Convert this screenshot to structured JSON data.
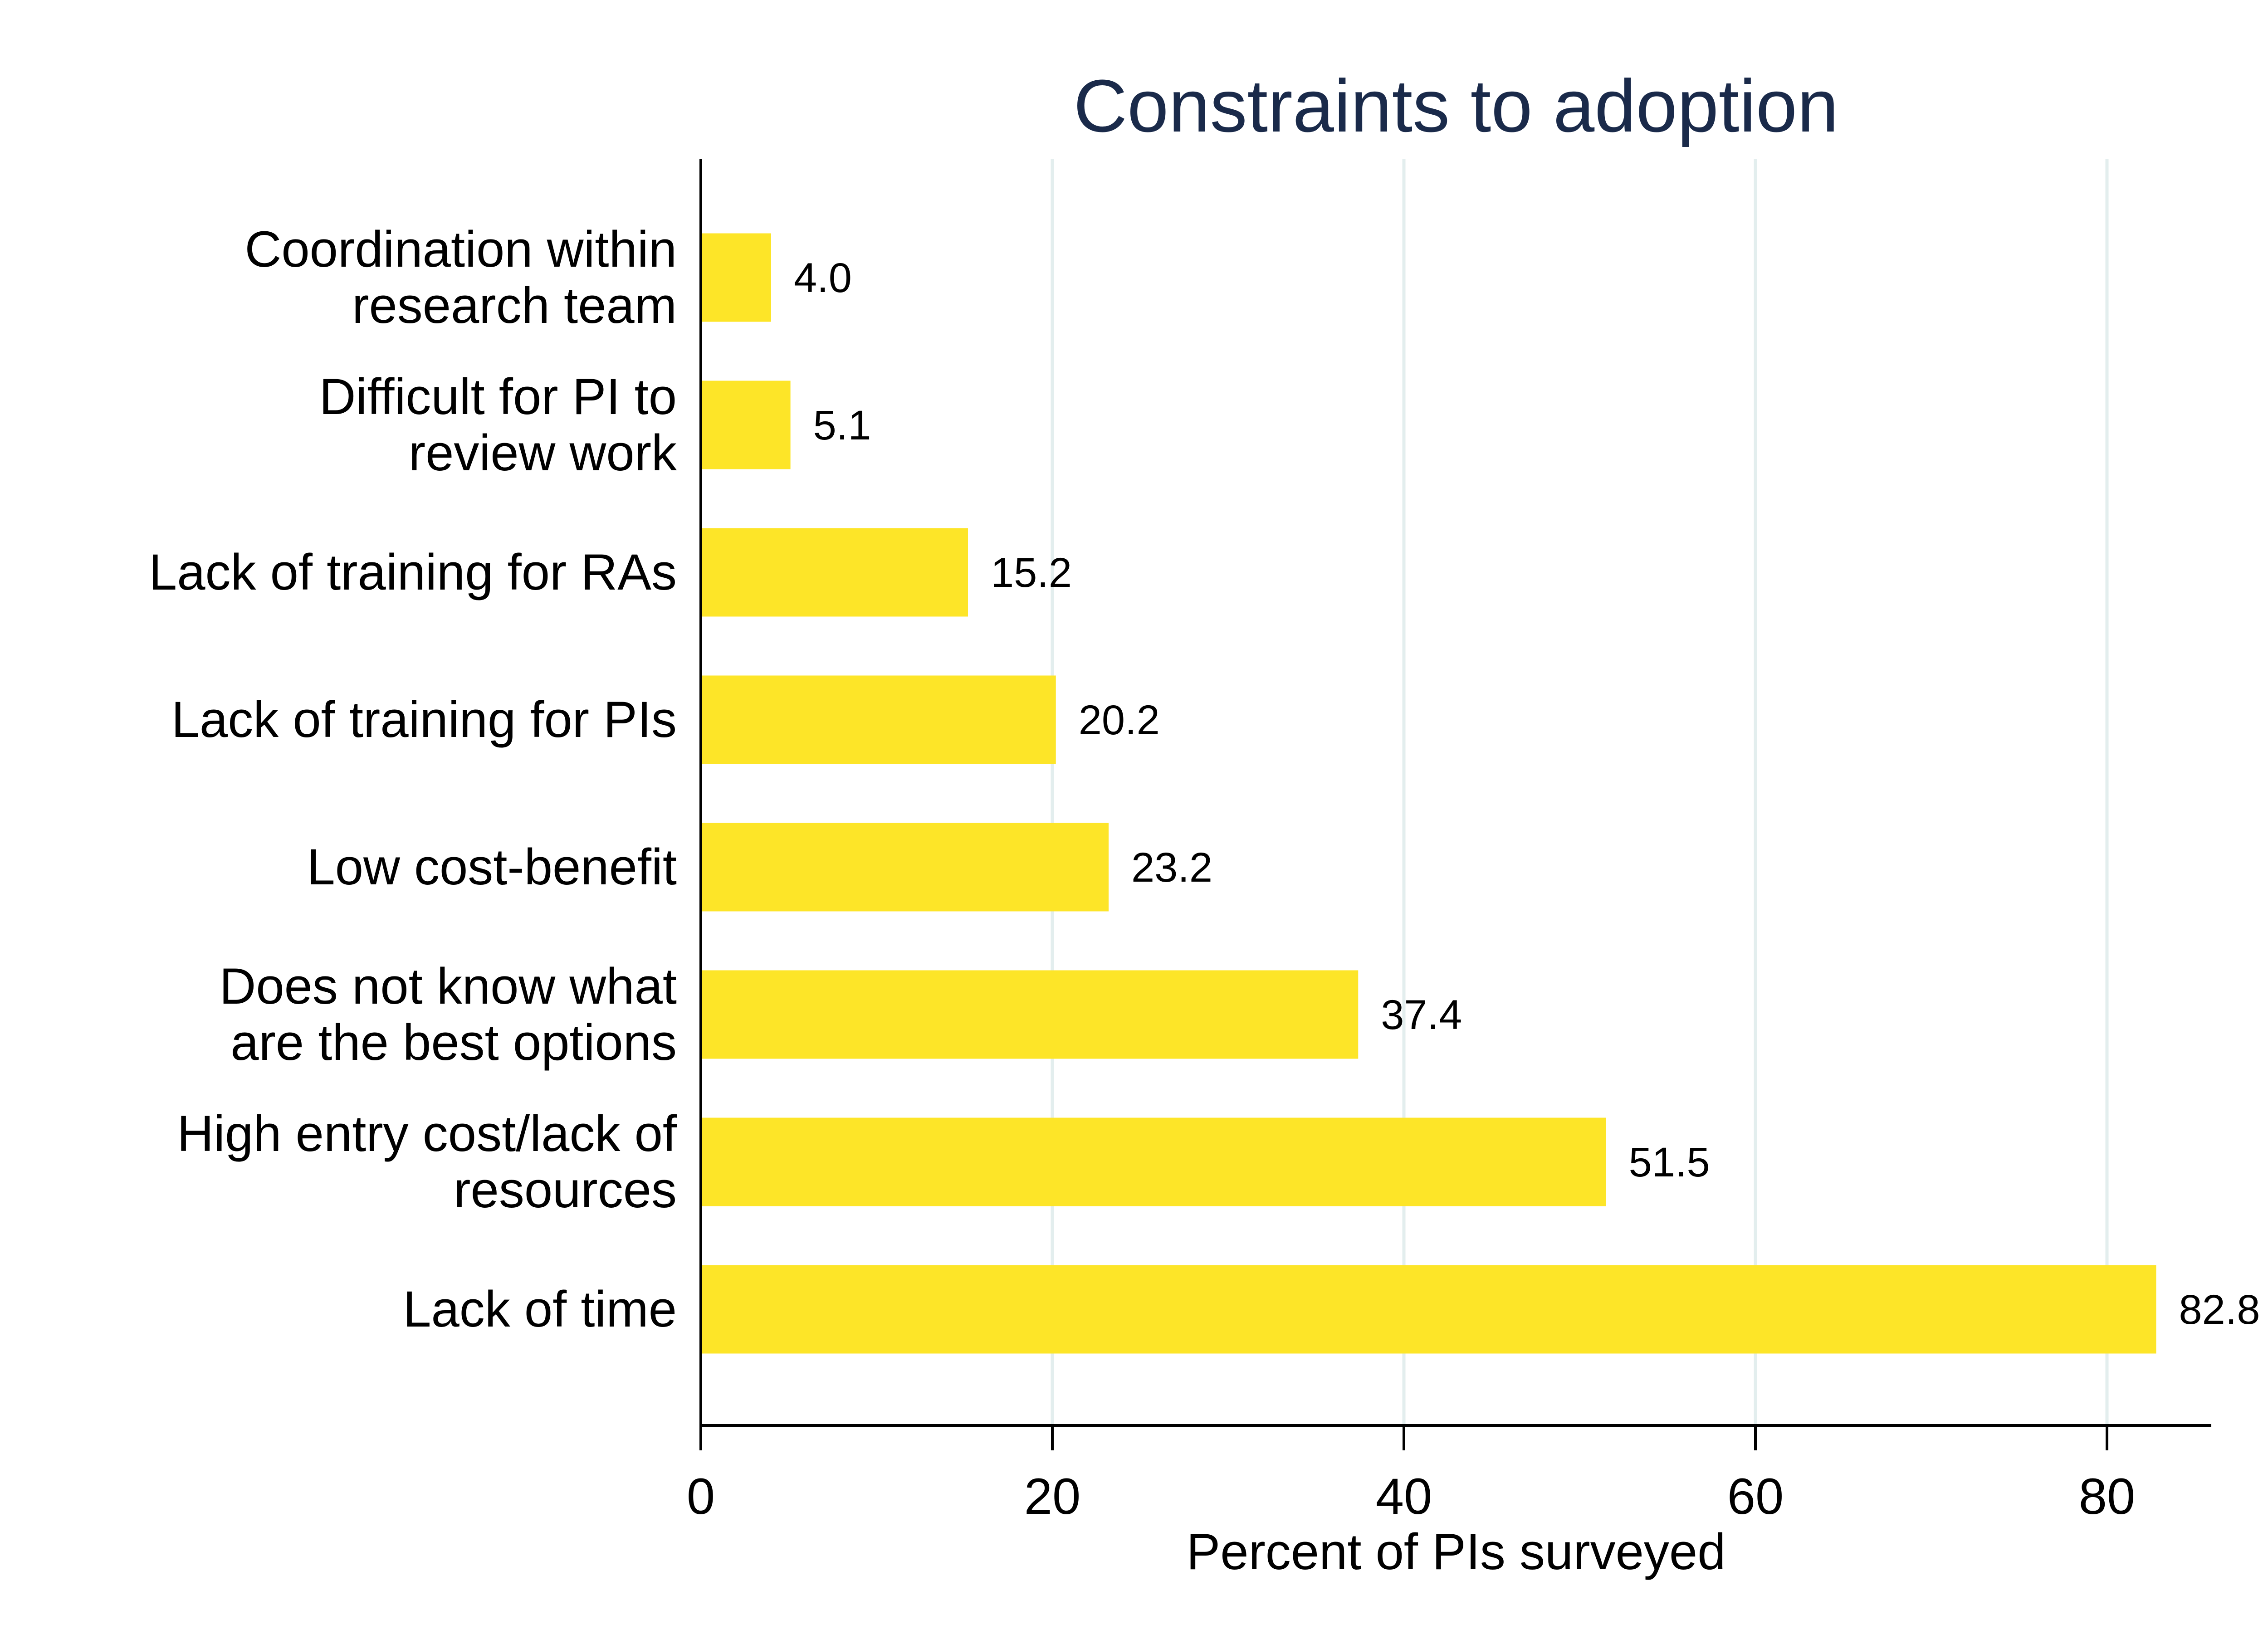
{
  "chart_data": {
    "type": "bar",
    "orientation": "horizontal",
    "title": "Constraints to adoption",
    "xlabel": "Percent of PIs surveyed",
    "ylabel": "",
    "xlim": [
      0,
      86
    ],
    "xticks": [
      0,
      20,
      40,
      60,
      80
    ],
    "grid": true,
    "legend": "none",
    "categories": [
      [
        "Coordination within",
        "research team"
      ],
      [
        "Difficult for PI to",
        "review work"
      ],
      [
        "Lack of training for RAs"
      ],
      [
        "Lack of training for PIs"
      ],
      [
        "Low cost-benefit"
      ],
      [
        "Does not know what",
        "are the best options"
      ],
      [
        "High entry cost/lack of",
        "resources"
      ],
      [
        "Lack of time"
      ]
    ],
    "values": [
      4.0,
      5.1,
      15.2,
      20.2,
      23.2,
      37.4,
      51.5,
      82.8
    ],
    "value_labels": [
      "4.0",
      "5.1",
      "15.2",
      "20.2",
      "23.2",
      "37.4",
      "51.5",
      "82.8"
    ],
    "colors": {
      "bar": "#fde528",
      "grid": "#e3eeee",
      "axis": "#000000",
      "title": "#1a2a4a"
    }
  }
}
